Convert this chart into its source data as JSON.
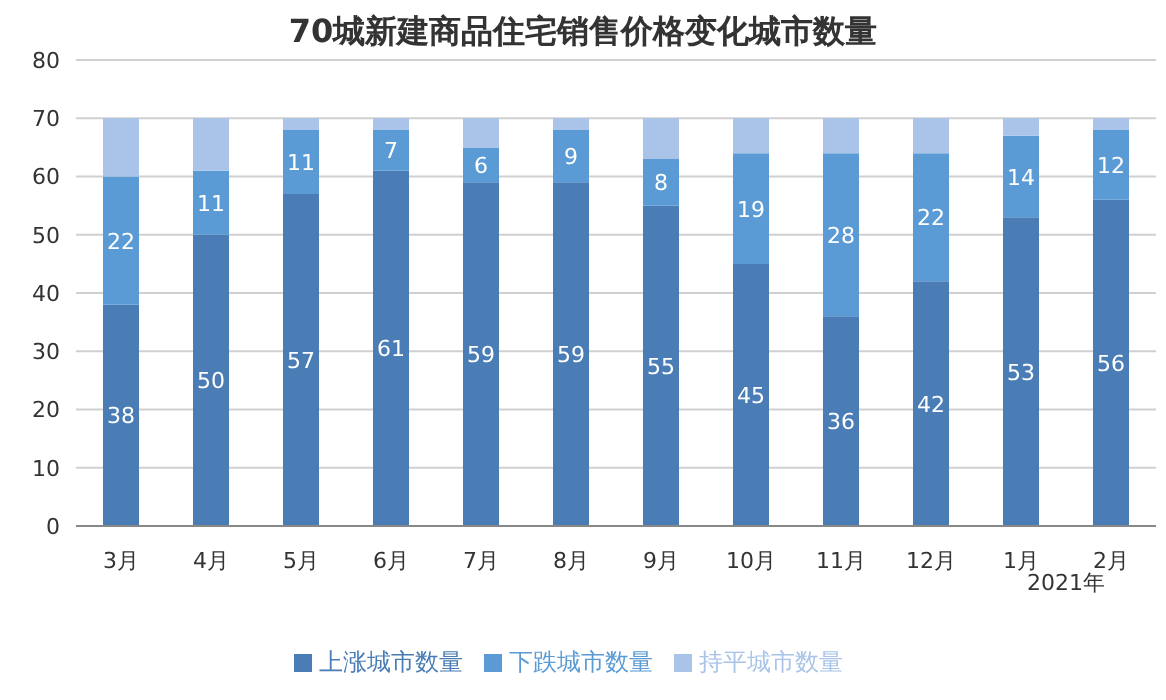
{
  "chart_data": {
    "type": "bar",
    "title": "70城新建商品住宅销售价格变化城市数量",
    "stacked": true,
    "categories": [
      "3月",
      "4月",
      "5月",
      "6月",
      "7月",
      "8月",
      "9月",
      "10月",
      "11月",
      "12月",
      "1月",
      "2月"
    ],
    "series": [
      {
        "name": "上涨城市数量",
        "color": "#4a7db5",
        "values": [
          38,
          50,
          57,
          61,
          59,
          59,
          55,
          45,
          36,
          42,
          53,
          56
        ],
        "value_labels": [
          "38",
          "50",
          "57",
          "61",
          "59",
          "59",
          "55",
          "45",
          "36",
          "42",
          "53",
          "56"
        ]
      },
      {
        "name": "下跌城市数量",
        "color": "#5b9bd5",
        "values": [
          22,
          11,
          11,
          7,
          6,
          9,
          8,
          19,
          28,
          22,
          14,
          12
        ],
        "value_labels": [
          "22",
          "11",
          "11",
          "7",
          "6",
          "9",
          "8",
          "19",
          "28",
          "22",
          "14",
          "12"
        ]
      },
      {
        "name": "持平城市数量",
        "color": "#a9c4e8",
        "values": [
          10,
          9,
          2,
          2,
          5,
          2,
          7,
          6,
          6,
          6,
          3,
          2
        ]
      }
    ],
    "ylim": [
      0,
      80
    ],
    "yticks": [
      0,
      10,
      20,
      30,
      40,
      50,
      60,
      70,
      80
    ],
    "grid": "y",
    "legend": "bottom",
    "annotations": [
      "2021年"
    ]
  }
}
